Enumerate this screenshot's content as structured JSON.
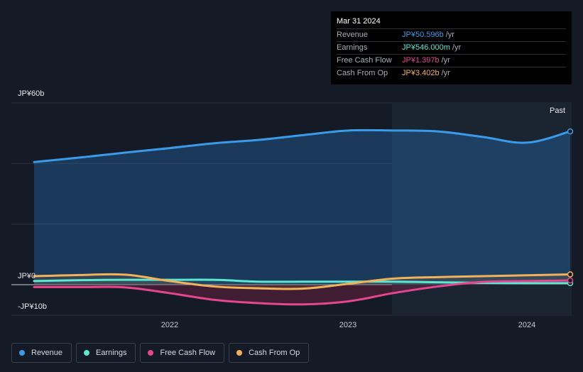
{
  "tooltip": {
    "date": "Mar 31 2024",
    "rows": [
      {
        "name": "Revenue",
        "value": "JP¥50.596b",
        "unit": "/yr",
        "color": "#3b9bea"
      },
      {
        "name": "Earnings",
        "value": "JP¥546.000m",
        "unit": "/yr",
        "color": "#5de6d2"
      },
      {
        "name": "Free Cash Flow",
        "value": "JP¥1.397b",
        "unit": "/yr",
        "color": "#e2478f"
      },
      {
        "name": "Cash From Op",
        "value": "JP¥3.402b",
        "unit": "/yr",
        "color": "#f2b25c"
      }
    ]
  },
  "axis": {
    "y_top_label": "JP¥60b",
    "y_zero_label": "JP¥0",
    "y_bottom_label": "-JP¥10b",
    "x_ticks": [
      "2022",
      "2023",
      "2024"
    ]
  },
  "past_label": "Past",
  "legend": [
    {
      "label": "Revenue",
      "color": "#3b9bea"
    },
    {
      "label": "Earnings",
      "color": "#5de6d2"
    },
    {
      "label": "Free Cash Flow",
      "color": "#e2478f"
    },
    {
      "label": "Cash From Op",
      "color": "#f2b25c"
    }
  ],
  "chart_data": {
    "type": "area",
    "x_unit": "year",
    "ylim": [
      -10,
      60
    ],
    "y_unit": "JP¥b",
    "x_ticks": [
      2022,
      2023,
      2024
    ],
    "grid": true,
    "series": [
      {
        "name": "Revenue",
        "color": "#3b9bea",
        "x": [
          2021.25,
          2021.5,
          2021.75,
          2022.0,
          2022.25,
          2022.5,
          2022.75,
          2023.0,
          2023.25,
          2023.5,
          2023.75,
          2024.0,
          2024.25
        ],
        "y": [
          40.5,
          42.0,
          43.6,
          45.1,
          46.7,
          47.8,
          49.4,
          50.9,
          50.9,
          50.6,
          48.8,
          46.9,
          50.6
        ]
      },
      {
        "name": "Earnings",
        "color": "#5de6d2",
        "x": [
          2021.25,
          2021.5,
          2021.75,
          2022.0,
          2022.25,
          2022.5,
          2022.75,
          2023.0,
          2023.25,
          2023.5,
          2023.75,
          2024.0,
          2024.25
        ],
        "y": [
          1.2,
          1.5,
          1.6,
          1.6,
          1.6,
          1.0,
          1.0,
          1.0,
          1.0,
          0.8,
          0.6,
          0.5,
          0.5
        ]
      },
      {
        "name": "Free Cash Flow",
        "color": "#e2478f",
        "x": [
          2021.25,
          2021.5,
          2021.75,
          2022.0,
          2022.25,
          2022.5,
          2022.75,
          2023.0,
          2023.25,
          2023.5,
          2023.75,
          2024.0,
          2024.25
        ],
        "y": [
          -0.8,
          -0.8,
          -0.9,
          -2.8,
          -5.0,
          -6.1,
          -6.5,
          -5.5,
          -2.8,
          -0.6,
          0.9,
          1.2,
          1.4
        ]
      },
      {
        "name": "Cash From Op",
        "color": "#f2b25c",
        "x": [
          2021.25,
          2021.5,
          2021.75,
          2022.0,
          2022.25,
          2022.5,
          2022.75,
          2023.0,
          2023.25,
          2023.5,
          2023.75,
          2024.0,
          2024.25
        ],
        "y": [
          2.8,
          3.2,
          3.3,
          1.2,
          -0.6,
          -1.2,
          -1.3,
          0.3,
          2.0,
          2.5,
          2.8,
          3.1,
          3.4
        ]
      }
    ]
  }
}
